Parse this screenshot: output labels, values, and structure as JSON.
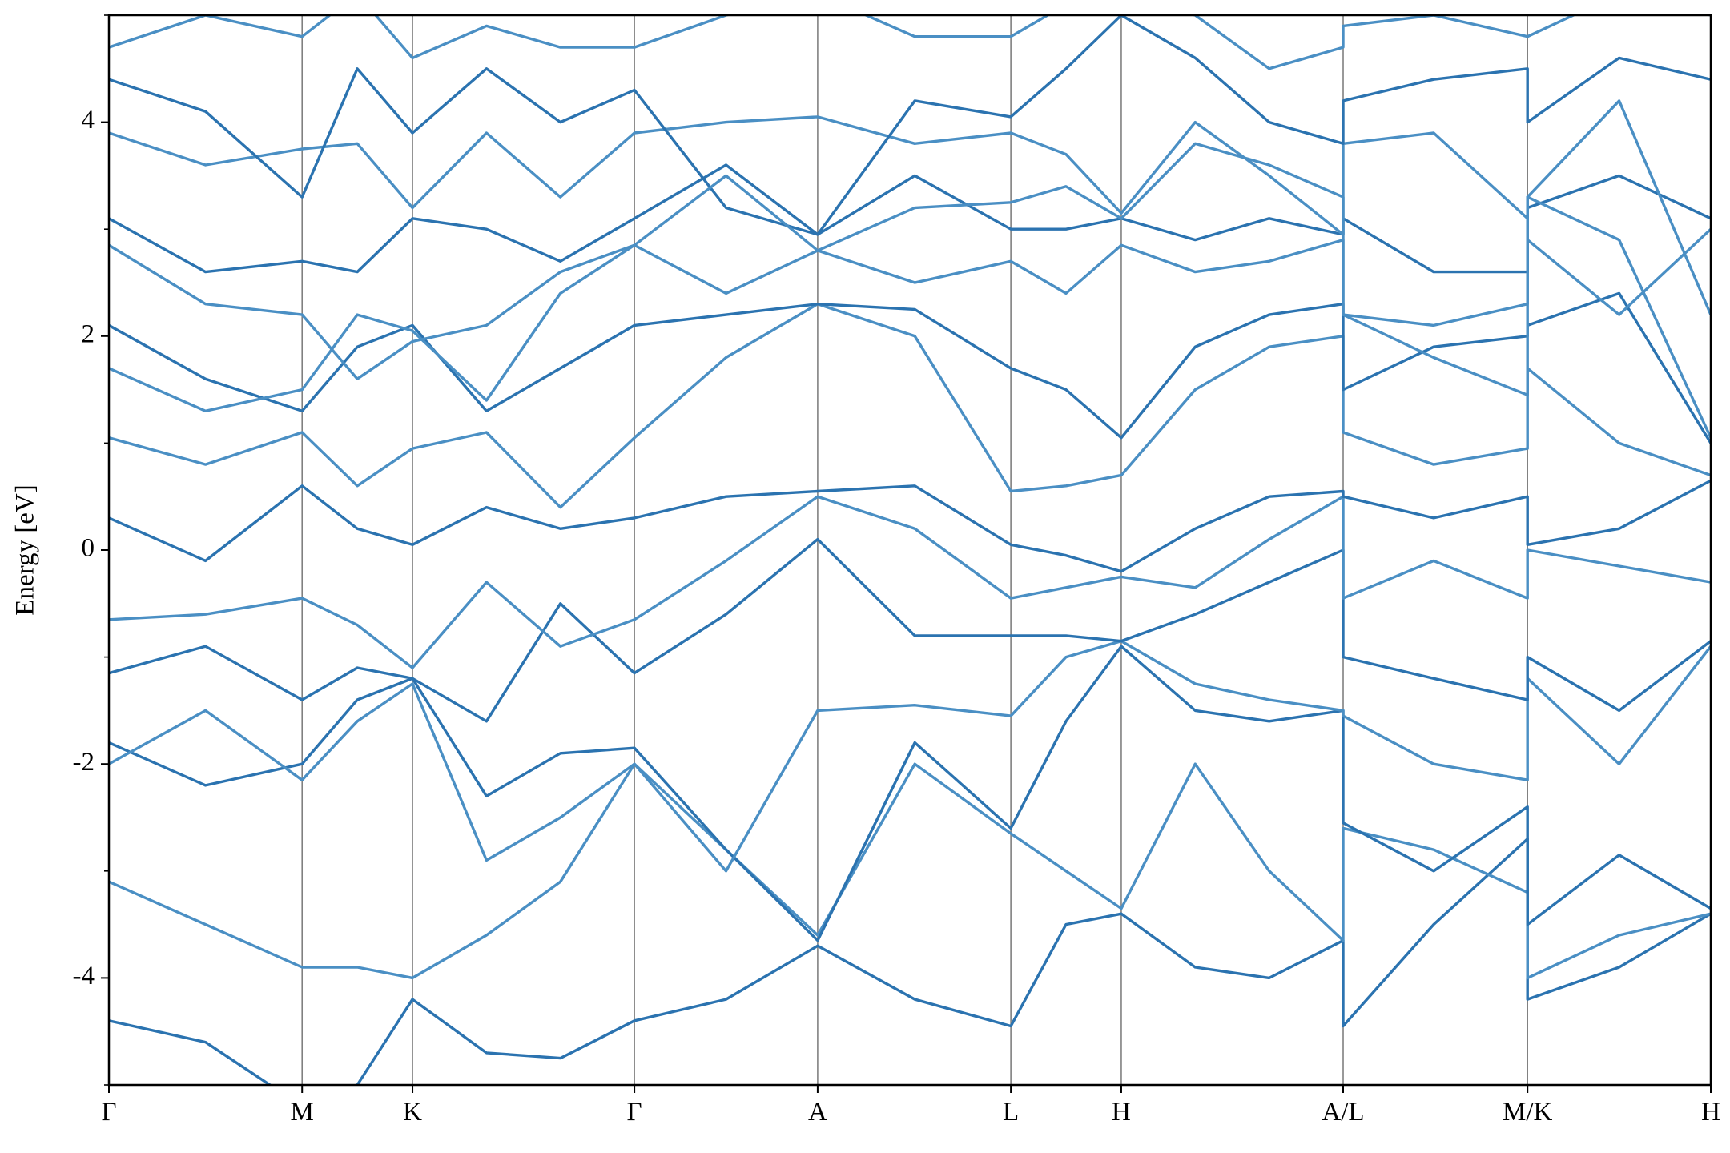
{
  "chart_data": {
    "type": "line",
    "y_label": "Energy [eV]",
    "xlim": [
      0,
      14.51
    ],
    "ylim": [
      -5,
      5
    ],
    "yticks": [
      -4,
      -2,
      0,
      2,
      4
    ],
    "yminorticks": [
      -5,
      -3,
      -1,
      1,
      3,
      5
    ],
    "xticks": [
      {
        "value": 0,
        "label": "Γ"
      },
      {
        "value": 1.75,
        "label": "M"
      },
      {
        "value": 2.75,
        "label": "K"
      },
      {
        "value": 4.76,
        "label": "Γ"
      },
      {
        "value": 6.42,
        "label": "A"
      },
      {
        "value": 8.17,
        "label": "L"
      },
      {
        "value": 9.17,
        "label": "H"
      },
      {
        "value": 11.18,
        "label": "A/L"
      },
      {
        "value": 12.85,
        "label": "M/K"
      },
      {
        "value": 14.51,
        "label": "H"
      }
    ],
    "grid": true,
    "x": [
      0,
      0.875,
      1.75,
      2.25,
      2.75,
      3.42,
      4.09,
      4.76,
      5.59,
      6.42,
      7.3,
      8.17,
      8.67,
      9.17,
      9.84,
      10.51,
      11.18,
      11.18,
      12.0,
      12.85,
      12.85,
      13.68,
      14.51
    ],
    "series": [
      {
        "color": "#2b73b0",
        "values": [
          -4.4,
          -4.6,
          -5.2,
          -5.0,
          -4.2,
          -4.7,
          -4.75,
          -4.4,
          -4.2,
          -3.7,
          -4.2,
          -4.45,
          -3.5,
          -3.4,
          -3.9,
          -4.0,
          -3.65,
          -4.45,
          -3.5,
          -2.7,
          -4.2,
          -3.9,
          -3.4
        ]
      },
      {
        "color": "#4a8fc4",
        "values": [
          -3.1,
          -3.5,
          -3.9,
          -3.9,
          -4.0,
          -3.6,
          -3.1,
          -2.0,
          -2.8,
          -3.6,
          -2.0,
          -2.65,
          -3.0,
          -3.35,
          -2.0,
          -3.0,
          -3.65,
          -2.6,
          -2.8,
          -3.2,
          -4.0,
          -3.6,
          -3.4
        ]
      },
      {
        "color": "#2b73b0",
        "values": [
          -1.8,
          -2.2,
          -2.0,
          -1.4,
          -1.2,
          -2.3,
          -1.9,
          -1.85,
          -2.8,
          -3.65,
          -1.8,
          -2.6,
          -1.6,
          -0.9,
          -1.5,
          -1.6,
          -1.5,
          -2.55,
          -3.0,
          -2.4,
          -3.5,
          -2.85,
          -3.35
        ]
      },
      {
        "color": "#4a8fc4",
        "values": [
          -2.0,
          -1.5,
          -2.15,
          -1.6,
          -1.25,
          -2.9,
          -2.5,
          -2.0,
          -3.0,
          -1.5,
          -1.45,
          -1.55,
          -1.0,
          -0.85,
          -1.25,
          -1.4,
          -1.5,
          -1.55,
          -2.0,
          -2.15,
          -1.2,
          -2.0,
          -0.9
        ]
      },
      {
        "color": "#2b73b0",
        "values": [
          -1.15,
          -0.9,
          -1.4,
          -1.1,
          -1.2,
          -1.6,
          -0.5,
          -1.15,
          -0.6,
          0.1,
          -0.8,
          -0.8,
          -0.8,
          -0.85,
          -0.6,
          -0.3,
          0.0,
          -1.0,
          -1.2,
          -1.4,
          -1.0,
          -1.5,
          -0.85
        ]
      },
      {
        "color": "#4a8fc4",
        "values": [
          -0.65,
          -0.6,
          -0.45,
          -0.7,
          -1.1,
          -0.3,
          -0.9,
          -0.65,
          -0.1,
          0.5,
          0.2,
          -0.45,
          -0.35,
          -0.25,
          -0.35,
          0.1,
          0.5,
          -0.45,
          -0.1,
          -0.45,
          0.0,
          -0.15,
          -0.3
        ]
      },
      {
        "color": "#2b73b0",
        "values": [
          0.3,
          -0.1,
          0.6,
          0.2,
          0.05,
          0.4,
          0.2,
          0.3,
          0.5,
          0.55,
          0.6,
          0.05,
          -0.05,
          -0.2,
          0.2,
          0.5,
          0.55,
          0.5,
          0.3,
          0.5,
          0.05,
          0.2,
          0.65
        ]
      },
      {
        "color": "#4a8fc4",
        "values": [
          1.05,
          0.8,
          1.1,
          0.6,
          0.95,
          1.1,
          0.4,
          1.05,
          1.8,
          2.3,
          2.0,
          0.55,
          0.6,
          0.7,
          1.5,
          1.9,
          2.0,
          1.1,
          0.8,
          0.95,
          1.7,
          1.0,
          0.7
        ]
      },
      {
        "color": "#2b73b0",
        "values": [
          2.1,
          1.6,
          1.3,
          1.9,
          2.1,
          1.3,
          1.7,
          2.1,
          2.2,
          2.3,
          2.25,
          1.7,
          1.5,
          1.05,
          1.9,
          2.2,
          2.3,
          1.5,
          1.9,
          2.0,
          2.1,
          2.4,
          1.0
        ]
      },
      {
        "color": "#4a8fc4",
        "values": [
          2.85,
          2.3,
          2.2,
          1.6,
          1.95,
          2.1,
          2.6,
          2.85,
          2.4,
          2.8,
          2.5,
          2.7,
          2.4,
          2.85,
          2.6,
          2.7,
          2.9,
          2.2,
          2.1,
          2.3,
          2.9,
          2.2,
          3.0
        ]
      },
      {
        "color": "#2b73b0",
        "values": [
          3.1,
          2.6,
          2.7,
          2.6,
          3.1,
          3.0,
          2.7,
          3.1,
          3.6,
          2.95,
          3.5,
          3.0,
          3.0,
          3.1,
          2.9,
          3.1,
          2.95,
          3.1,
          2.6,
          2.6,
          3.2,
          3.5,
          3.1
        ]
      },
      {
        "color": "#4a8fc4",
        "values": [
          3.9,
          3.6,
          3.75,
          3.8,
          3.2,
          3.9,
          3.3,
          3.9,
          4.0,
          4.05,
          3.8,
          3.9,
          3.7,
          3.15,
          4.0,
          3.5,
          2.95,
          3.8,
          3.9,
          3.1,
          3.3,
          4.2,
          2.2
        ]
      },
      {
        "color": "#2b73b0",
        "values": [
          4.4,
          4.1,
          3.3,
          4.5,
          3.9,
          4.5,
          4.0,
          4.3,
          3.2,
          2.95,
          4.2,
          4.05,
          4.5,
          5.0,
          4.6,
          4.0,
          3.8,
          4.2,
          4.4,
          4.5,
          4.0,
          4.6,
          4.4
        ]
      },
      {
        "color": "#4a8fc4",
        "values": [
          4.7,
          5.0,
          4.8,
          5.2,
          4.6,
          4.9,
          4.7,
          4.7,
          5.0,
          5.2,
          4.8,
          4.8,
          5.1,
          5.2,
          5.0,
          4.5,
          4.7,
          4.9,
          5.0,
          4.8,
          4.8,
          5.2,
          5.0
        ]
      },
      {
        "color": "#4a8fc4",
        "values": [
          1.7,
          1.3,
          1.5,
          2.2,
          2.05,
          1.4,
          2.4,
          2.85,
          3.5,
          2.8,
          3.2,
          3.25,
          3.4,
          3.1,
          3.8,
          3.6,
          3.3,
          2.2,
          1.8,
          1.45,
          3.3,
          2.9,
          1.05
        ]
      }
    ]
  }
}
